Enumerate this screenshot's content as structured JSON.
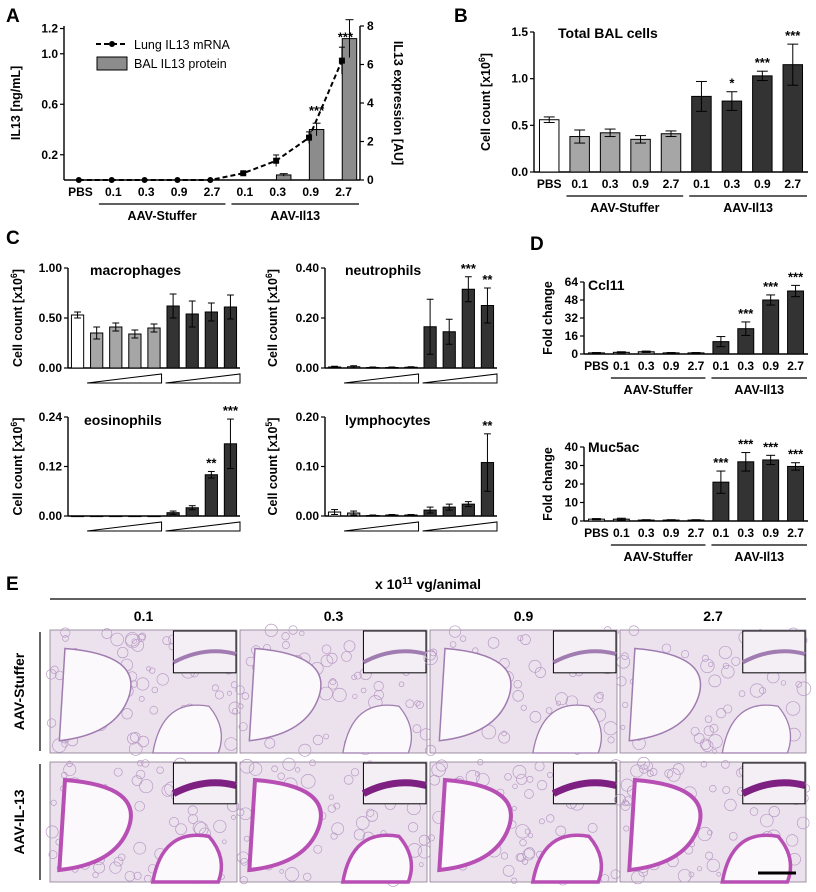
{
  "figure": {
    "panel_labels": [
      "A",
      "B",
      "C",
      "D",
      "E"
    ],
    "dose_labels": [
      "0.1",
      "0.3",
      "0.9",
      "2.7"
    ],
    "pbs_label": "PBS",
    "group_labels": [
      "AAV-Stuffer",
      "AAV-Il13"
    ],
    "colors": {
      "pbs": "#ffffff",
      "stuffer": "#a6a6a6",
      "il13": "#333333",
      "stain": "#b84fb4"
    }
  },
  "chart_data": [
    {
      "id": "A",
      "type": "bar",
      "categories": [
        "PBS",
        "0.1",
        "0.3",
        "0.9",
        "2.7",
        "0.1",
        "0.3",
        "0.9",
        "2.7"
      ],
      "groups": [
        "AAV-Stuffer",
        "AAV-Il13"
      ],
      "series": [
        {
          "name": "Lung IL13 mRNA",
          "kind": "line",
          "axis": "right",
          "values": [
            0,
            0,
            0,
            0,
            0,
            0.35,
            1.0,
            2.2,
            6.2
          ],
          "errors": [
            0,
            0,
            0,
            0,
            0,
            0.05,
            0.3,
            0.3,
            0.7
          ]
        },
        {
          "name": "BAL IL13 protein",
          "kind": "bar",
          "axis": "left",
          "values": [
            0,
            0,
            0,
            0,
            0,
            0,
            0.04,
            0.4,
            1.12
          ],
          "errors": [
            0,
            0,
            0,
            0,
            0,
            0,
            0.01,
            0.05,
            0.15
          ]
        }
      ],
      "ylabel": "IL13 [ng/mL]",
      "ylim": [
        0,
        1.22
      ],
      "yticks": [
        "0.2",
        "0.6",
        "1.0",
        "1.2"
      ],
      "y2label": "IL13 expression [AU]",
      "y2lim": [
        0,
        8
      ],
      "y2ticks": [
        "0",
        "2",
        "4",
        "6",
        "8"
      ],
      "annotations": [
        "***",
        "***"
      ],
      "legend": "top-left"
    },
    {
      "id": "B",
      "type": "bar",
      "title": "Total BAL cells",
      "categories": [
        "PBS",
        "0.1",
        "0.3",
        "0.9",
        "2.7",
        "0.1",
        "0.3",
        "0.9",
        "2.7"
      ],
      "values": [
        0.56,
        0.38,
        0.42,
        0.35,
        0.41,
        0.81,
        0.76,
        1.03,
        1.15
      ],
      "errors": [
        0.03,
        0.07,
        0.04,
        0.04,
        0.03,
        0.16,
        0.1,
        0.05,
        0.22
      ],
      "ylabel": "Cell count [x10⁶]",
      "ylim": [
        0,
        1.5
      ],
      "yticks": [
        "0.0",
        "0.5",
        "1.0",
        "1.5"
      ],
      "annotations": [
        "*",
        "***",
        "***"
      ]
    },
    {
      "id": "C1",
      "type": "bar",
      "title": "macrophages",
      "values": [
        0.53,
        0.35,
        0.41,
        0.34,
        0.4,
        0.62,
        0.54,
        0.56,
        0.61
      ],
      "errors": [
        0.03,
        0.06,
        0.04,
        0.04,
        0.04,
        0.12,
        0.13,
        0.09,
        0.12
      ],
      "ylabel": "Cell count [x10⁶]",
      "ylim": [
        0,
        1.0
      ],
      "yticks": [
        "0.00",
        "0.50",
        "1.00"
      ]
    },
    {
      "id": "C2",
      "type": "bar",
      "title": "neutrophils",
      "values": [
        0.004,
        0.005,
        0.002,
        0.002,
        0.003,
        0.165,
        0.145,
        0.315,
        0.25
      ],
      "errors": [
        0.003,
        0.004,
        0.002,
        0.002,
        0.002,
        0.11,
        0.05,
        0.05,
        0.07
      ],
      "ylabel": "Cell count [x10⁶]",
      "ylim": [
        0,
        0.4
      ],
      "yticks": [
        "0.00",
        "0.20",
        "0.40"
      ],
      "annotations": [
        "***",
        "**"
      ]
    },
    {
      "id": "C3",
      "type": "bar",
      "title": "eosinophils",
      "values": [
        0,
        0,
        0,
        0,
        0,
        0.008,
        0.02,
        0.1,
        0.175
      ],
      "errors": [
        0,
        0,
        0,
        0,
        0,
        0.004,
        0.005,
        0.008,
        0.06
      ],
      "ylabel": "Cell count [x10⁶]",
      "ylim": [
        0,
        0.24
      ],
      "yticks": [
        "0.00",
        "0.12",
        "0.24"
      ],
      "annotations": [
        "**",
        "***"
      ]
    },
    {
      "id": "C4",
      "type": "bar",
      "title": "lymphocytes",
      "values": [
        0.008,
        0.006,
        0.001,
        0.002,
        0.002,
        0.012,
        0.018,
        0.024,
        0.108
      ],
      "errors": [
        0.005,
        0.004,
        0.001,
        0.001,
        0.001,
        0.006,
        0.006,
        0.005,
        0.058
      ],
      "ylabel": "Cell count [x10⁵]",
      "ylim": [
        0,
        0.2
      ],
      "yticks": [
        "0.00",
        "0.10",
        "0.20"
      ],
      "annotations": [
        "**"
      ]
    },
    {
      "id": "D1",
      "type": "bar",
      "title": "Ccl11",
      "categories": [
        "PBS",
        "0.1",
        "0.3",
        "0.9",
        "2.7",
        "0.1",
        "0.3",
        "0.9",
        "2.7"
      ],
      "values": [
        1,
        1.5,
        2,
        1,
        1,
        11,
        22.5,
        48,
        56
      ],
      "errors": [
        0.3,
        0.5,
        0.6,
        0.3,
        0.3,
        4.5,
        6,
        4.5,
        5
      ],
      "ylabel": "Fold change",
      "ylim": [
        0,
        64
      ],
      "yticks": [
        "0",
        "16",
        "32",
        "48",
        "64"
      ],
      "annotations": [
        "***",
        "***",
        "***"
      ]
    },
    {
      "id": "D2",
      "type": "bar",
      "title": "Muc5ac",
      "categories": [
        "PBS",
        "0.1",
        "0.3",
        "0.9",
        "2.7",
        "0.1",
        "0.3",
        "0.9",
        "2.7"
      ],
      "values": [
        1,
        1,
        0.5,
        0.5,
        0.5,
        21,
        32,
        33,
        29.5
      ],
      "errors": [
        0.3,
        0.5,
        0.2,
        0.2,
        0.2,
        6,
        5,
        2.5,
        2
      ],
      "ylabel": "Fold change",
      "ylim": [
        0,
        40
      ],
      "yticks": [
        "0",
        "10",
        "20",
        "30",
        "40"
      ],
      "annotations": [
        "***",
        "***",
        "***",
        "***"
      ]
    }
  ],
  "panel_e": {
    "dose_header": "x 10¹¹ vg/animal",
    "column_labels": [
      "0.1",
      "0.3",
      "0.9",
      "2.7"
    ],
    "row_labels": [
      "AAV-Stuffer",
      "AAV-IL-13"
    ]
  }
}
